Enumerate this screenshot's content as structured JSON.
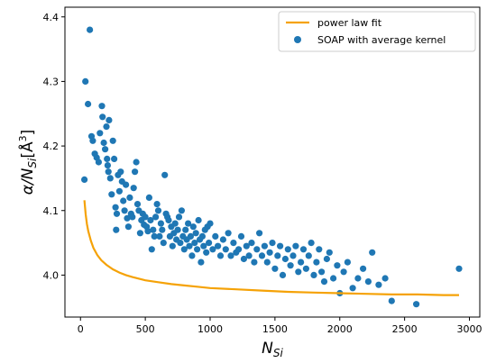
{
  "chart_data": {
    "type": "scatter",
    "xlabel_main": "N",
    "xlabel_sub": "Si",
    "ylabel_main": "α/N",
    "ylabel_sub": "Si",
    "ylabel_unit": "[Å",
    "ylabel_unit_sup": "3",
    "ylabel_unit_close": "]",
    "xlim": [
      -120,
      3080
    ],
    "ylim": [
      3.935,
      4.415
    ],
    "xticks": [
      0,
      500,
      1000,
      1500,
      2000,
      2500,
      3000
    ],
    "yticks": [
      4.0,
      4.1,
      4.2,
      4.3,
      4.4
    ],
    "xtick_labels": [
      "0",
      "500",
      "1000",
      "1500",
      "2000",
      "2500",
      "3000"
    ],
    "ytick_labels": [
      "4.0",
      "4.1",
      "4.2",
      "4.3",
      "4.4"
    ],
    "legend_position": "top-right",
    "series": [
      {
        "name": "power law fit",
        "kind": "line",
        "color": "#f5a207",
        "model": "y = 3.952 + 0.9 * x^-0.5",
        "x": [
          30,
          40,
          50,
          60,
          80,
          100,
          130,
          160,
          200,
          250,
          300,
          350,
          400,
          500,
          600,
          700,
          800,
          900,
          1000,
          1200,
          1400,
          1600,
          1800,
          2000,
          2200,
          2400,
          2600,
          2800,
          2920
        ],
        "y": [
          4.116,
          4.094,
          4.079,
          4.068,
          4.053,
          4.042,
          4.031,
          4.023,
          4.016,
          4.009,
          4.004,
          4.0,
          3.997,
          3.992,
          3.989,
          3.986,
          3.984,
          3.982,
          3.98,
          3.978,
          3.976,
          3.974,
          3.973,
          3.972,
          3.971,
          3.97,
          3.97,
          3.969,
          3.969
        ]
      },
      {
        "name": "SOAP with average kernel",
        "kind": "scatter",
        "color": "#1f77b4",
        "x": [
          30,
          38,
          58,
          72,
          85,
          95,
          110,
          125,
          140,
          150,
          165,
          170,
          180,
          190,
          200,
          205,
          210,
          215,
          220,
          230,
          240,
          250,
          260,
          270,
          275,
          280,
          290,
          300,
          310,
          320,
          330,
          340,
          350,
          360,
          370,
          380,
          390,
          400,
          410,
          420,
          430,
          440,
          450,
          460,
          470,
          480,
          490,
          500,
          510,
          520,
          530,
          540,
          550,
          560,
          570,
          580,
          590,
          600,
          610,
          620,
          630,
          640,
          650,
          660,
          670,
          680,
          690,
          700,
          710,
          720,
          730,
          740,
          750,
          760,
          770,
          780,
          790,
          800,
          810,
          820,
          830,
          840,
          850,
          860,
          870,
          880,
          890,
          900,
          910,
          920,
          930,
          940,
          950,
          960,
          970,
          980,
          990,
          1000,
          1020,
          1040,
          1060,
          1080,
          1100,
          1120,
          1140,
          1160,
          1180,
          1200,
          1220,
          1240,
          1260,
          1280,
          1300,
          1320,
          1340,
          1360,
          1380,
          1400,
          1420,
          1440,
          1460,
          1480,
          1500,
          1520,
          1540,
          1560,
          1580,
          1600,
          1620,
          1640,
          1660,
          1680,
          1700,
          1720,
          1740,
          1760,
          1780,
          1800,
          1820,
          1840,
          1860,
          1880,
          1900,
          1920,
          1950,
          1980,
          2000,
          2030,
          2060,
          2100,
          2140,
          2180,
          2220,
          2250,
          2300,
          2350,
          2400,
          2590,
          2920
        ],
        "y": [
          4.148,
          4.3,
          4.265,
          4.38,
          4.215,
          4.208,
          4.188,
          4.182,
          4.175,
          4.22,
          4.262,
          4.245,
          4.205,
          4.195,
          4.23,
          4.18,
          4.17,
          4.16,
          4.24,
          4.15,
          4.125,
          4.208,
          4.18,
          4.105,
          4.07,
          4.095,
          4.155,
          4.13,
          4.16,
          4.145,
          4.115,
          4.1,
          4.14,
          4.088,
          4.075,
          4.12,
          4.095,
          4.09,
          4.135,
          4.16,
          4.175,
          4.11,
          4.1,
          4.065,
          4.085,
          4.095,
          4.078,
          4.09,
          4.075,
          4.068,
          4.12,
          4.085,
          4.04,
          4.07,
          4.06,
          4.09,
          4.11,
          4.1,
          4.06,
          4.08,
          4.07,
          4.05,
          4.155,
          4.095,
          4.09,
          4.085,
          4.06,
          4.075,
          4.045,
          4.065,
          4.08,
          4.055,
          4.07,
          4.09,
          4.05,
          4.1,
          4.06,
          4.04,
          4.07,
          4.055,
          4.08,
          4.045,
          4.06,
          4.03,
          4.075,
          4.05,
          4.065,
          4.04,
          4.085,
          4.055,
          4.02,
          4.06,
          4.045,
          4.07,
          4.035,
          4.075,
          4.05,
          4.08,
          4.04,
          4.06,
          4.045,
          4.03,
          4.055,
          4.04,
          4.065,
          4.03,
          4.05,
          4.035,
          4.04,
          4.06,
          4.025,
          4.045,
          4.03,
          4.05,
          4.02,
          4.04,
          4.065,
          4.03,
          4.045,
          4.02,
          4.035,
          4.05,
          4.01,
          4.03,
          4.045,
          4.0,
          4.025,
          4.04,
          4.015,
          4.03,
          4.045,
          4.005,
          4.02,
          4.04,
          4.01,
          4.03,
          4.05,
          4.0,
          4.02,
          4.04,
          4.005,
          3.99,
          4.025,
          4.035,
          3.995,
          4.015,
          3.972,
          4.005,
          4.02,
          3.98,
          3.995,
          4.01,
          3.99,
          4.035,
          3.985,
          3.995,
          3.96,
          3.955,
          4.01
        ]
      }
    ]
  }
}
